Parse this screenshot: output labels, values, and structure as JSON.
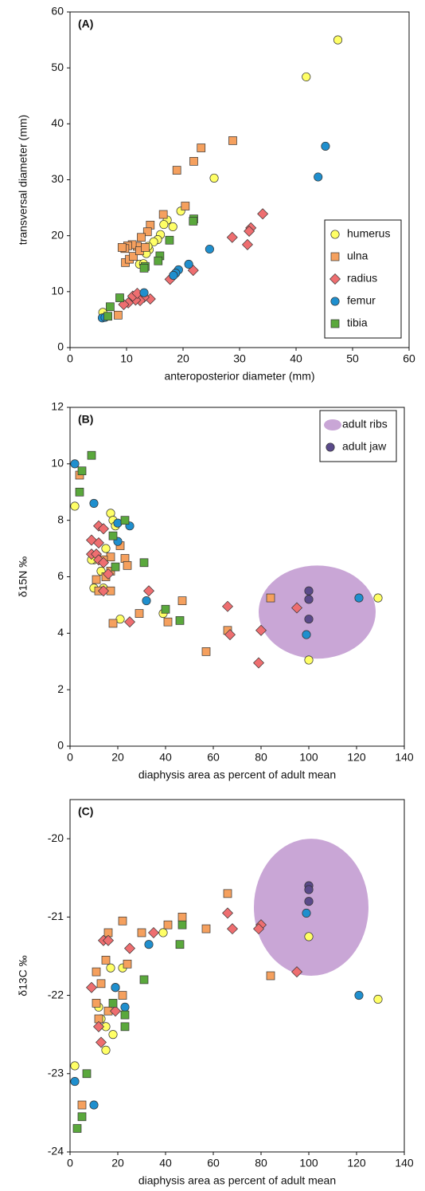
{
  "chart_data": [
    {
      "type": "scatter",
      "label": "(A)",
      "xlabel": "anteroposterior diameter (mm)",
      "ylabel": "transversal diameter (mm)",
      "xlim": [
        0,
        60
      ],
      "ylim": [
        0,
        60
      ],
      "xticks": [
        0,
        10,
        20,
        30,
        40,
        50,
        60
      ],
      "yticks": [
        0,
        10,
        20,
        30,
        40,
        50,
        60
      ],
      "legend": "lower right",
      "series": [
        {
          "name": "humerus",
          "color": "#ffff66",
          "marker": "circle",
          "x": [
            47.4,
            41.8,
            25.5,
            19.6,
            18.2,
            17.2,
            16.6,
            16,
            15.5,
            14.8,
            14,
            13.5,
            13.8,
            12.3,
            5.8,
            13
          ],
          "values": [
            55,
            48.4,
            30.3,
            24.4,
            21.6,
            22.8,
            22,
            20.2,
            19.3,
            18.9,
            17.5,
            16.8,
            18.1,
            14.9,
            6.3,
            15
          ]
        },
        {
          "name": "ulna",
          "color": "#f5a05e",
          "marker": "square",
          "x": [
            28.8,
            23.2,
            21.9,
            18.9,
            20.4,
            16.5,
            14.2,
            13.7,
            12.6,
            11.9,
            11,
            10.2,
            9.7,
            9.8,
            10.5,
            11.2,
            12.3,
            13.3,
            9.2,
            8.5
          ],
          "values": [
            37,
            35.7,
            33.3,
            31.7,
            25.3,
            23.8,
            21.9,
            20.7,
            19.7,
            18.1,
            18.4,
            18.2,
            17.7,
            15.2,
            15.8,
            16.3,
            17.3,
            17.9,
            17.9,
            5.8
          ]
        },
        {
          "name": "radius",
          "color": "#ee6e70",
          "marker": "diamond",
          "x": [
            34.1,
            32,
            31.7,
            31.4,
            28.7,
            21.8,
            18.5,
            17.7,
            14.2,
            13.1,
            12.4,
            11.6,
            11.1,
            10.3,
            9.5,
            11.9
          ],
          "values": [
            23.9,
            21.4,
            20.8,
            18.4,
            19.7,
            13.8,
            13.2,
            12.2,
            8.7,
            9,
            8.4,
            8.5,
            9.2,
            8,
            7.7,
            9.7
          ]
        },
        {
          "name": "femur",
          "color": "#1f8fce",
          "marker": "circle",
          "x": [
            45.2,
            43.9,
            24.7,
            21,
            19.2,
            18.7,
            18.3,
            13.1,
            5.7,
            6.2
          ],
          "values": [
            36,
            30.5,
            17.6,
            14.9,
            13.9,
            13.3,
            12.9,
            9.8,
            5.3,
            5.4
          ]
        },
        {
          "name": "tibia",
          "color": "#5aa83c",
          "marker": "square",
          "x": [
            21.9,
            21.8,
            17.6,
            15.9,
            15.6,
            13.3,
            13.1,
            8.8,
            7.1,
            6.7
          ],
          "values": [
            23,
            22.6,
            19.2,
            16.4,
            15.5,
            14.5,
            14.2,
            8.9,
            7.3,
            5.6
          ]
        }
      ]
    },
    {
      "type": "scatter",
      "label": "(B)",
      "xlabel": "diaphysis area as percent of adult mean",
      "ylabel": "δ15N ‰",
      "xlim": [
        0,
        140
      ],
      "ylim": [
        0,
        12
      ],
      "xticks": [
        0,
        20,
        40,
        60,
        80,
        100,
        120,
        140
      ],
      "yticks": [
        0,
        2,
        4,
        6,
        8,
        10,
        12
      ],
      "legend": "upper right",
      "series": [
        {
          "name": "adult ribs",
          "color": "#c9a6d6",
          "marker": "ellipse",
          "x_range": [
            79,
            128
          ],
          "y_range": [
            3.1,
            6.4
          ]
        },
        {
          "color": "#ffff66",
          "marker": "circle",
          "x": [
            2,
            17,
            18,
            19,
            15,
            10,
            9,
            10,
            14,
            21,
            39,
            100,
            129,
            13
          ],
          "values": [
            8.5,
            8.25,
            8,
            7.8,
            7,
            6.6,
            6.6,
            5.6,
            5.6,
            4.5,
            4.7,
            3.05,
            5.25,
            6.2
          ]
        },
        {
          "color": "#f5a05e",
          "marker": "square",
          "x": [
            4,
            21,
            17,
            14,
            17,
            15,
            11,
            12,
            17,
            18,
            23,
            24,
            29,
            41,
            47,
            57,
            66,
            84
          ],
          "values": [
            9.6,
            7.1,
            6.7,
            6.6,
            6.2,
            6,
            5.9,
            5.5,
            5.5,
            4.35,
            6.65,
            6.4,
            4.7,
            4.4,
            5.15,
            3.35,
            4.1,
            5.25
          ]
        },
        {
          "color": "#ee6e70",
          "marker": "diamond",
          "x": [
            12,
            14,
            9,
            12,
            9,
            11,
            12,
            14,
            16,
            14,
            33,
            25,
            66,
            67,
            80,
            79,
            95
          ],
          "values": [
            7.8,
            7.7,
            7.3,
            7.2,
            6.8,
            6.8,
            6.6,
            6.5,
            6.1,
            5.5,
            5.5,
            4.4,
            4.95,
            3.95,
            4.1,
            2.95,
            4.9
          ]
        },
        {
          "color": "#1f8fce",
          "marker": "circle",
          "x": [
            2,
            10,
            20,
            25,
            20,
            32,
            99,
            121
          ],
          "values": [
            10,
            8.6,
            7.9,
            7.8,
            7.25,
            5.15,
            3.95,
            5.25
          ]
        },
        {
          "color": "#5aa83c",
          "marker": "square",
          "x": [
            9,
            5,
            4,
            23,
            18,
            19,
            31,
            40,
            46
          ],
          "values": [
            10.3,
            9.75,
            9,
            8,
            7.45,
            6.35,
            6.5,
            4.85,
            4.45
          ]
        },
        {
          "name": "adult jaw",
          "color": "#5a4a8a",
          "marker": "circle",
          "x": [
            100,
            100,
            100
          ],
          "values": [
            5.5,
            5.2,
            4.5
          ]
        }
      ]
    },
    {
      "type": "scatter",
      "label": "(C)",
      "xlabel": "diaphysis area as percent of adult mean",
      "ylabel": "δ13C ‰",
      "xlim": [
        0,
        140
      ],
      "ylim": [
        -24,
        -19.5
      ],
      "xticks": [
        0,
        20,
        40,
        60,
        80,
        100,
        120,
        140
      ],
      "yticks": [
        -24,
        -23,
        -22,
        -21,
        -20
      ],
      "series": [
        {
          "color": "#c9a6d6",
          "marker": "ellipse",
          "x_range": [
            77,
            125
          ],
          "y_range": [
            -21.75,
            -20
          ]
        },
        {
          "color": "#ffff66",
          "marker": "circle",
          "x": [
            2,
            17,
            19,
            22,
            39,
            13,
            15,
            12,
            18,
            15,
            100,
            129
          ],
          "values": [
            -22.9,
            -21.65,
            -21.9,
            -21.65,
            -21.2,
            -22.3,
            -22.4,
            -22.15,
            -22.5,
            -22.7,
            -21.25,
            -22.05
          ]
        },
        {
          "color": "#f5a05e",
          "marker": "square",
          "x": [
            5,
            16,
            15,
            11,
            13,
            11,
            16,
            22,
            24,
            22,
            30,
            41,
            47,
            57,
            66,
            84,
            12
          ],
          "values": [
            -23.4,
            -21.2,
            -21.55,
            -21.7,
            -21.85,
            -22.1,
            -22.2,
            -21.05,
            -21.6,
            -22,
            -21.2,
            -21.1,
            -21,
            -21.15,
            -20.7,
            -21.75,
            -22.3
          ]
        },
        {
          "color": "#ee6e70",
          "marker": "diamond",
          "x": [
            14,
            16,
            9,
            12,
            13,
            19,
            25,
            35,
            66,
            68,
            80,
            79,
            95
          ],
          "values": [
            -21.3,
            -21.3,
            -21.9,
            -22.4,
            -22.6,
            -22.2,
            -21.4,
            -21.2,
            -20.95,
            -21.15,
            -21.1,
            -21.15,
            -21.7
          ]
        },
        {
          "color": "#1f8fce",
          "marker": "circle",
          "x": [
            2,
            10,
            19,
            23,
            33,
            99,
            121
          ],
          "values": [
            -23.1,
            -23.4,
            -21.9,
            -22.15,
            -21.35,
            -20.95,
            -22
          ]
        },
        {
          "color": "#5aa83c",
          "marker": "square",
          "x": [
            3,
            5,
            7,
            18,
            23,
            23,
            31,
            46,
            47
          ],
          "values": [
            -23.7,
            -23.55,
            -23,
            -22.1,
            -22.25,
            -22.4,
            -21.8,
            -21.35,
            -21.1
          ]
        },
        {
          "color": "#5a4a8a",
          "marker": "circle",
          "x": [
            100,
            100,
            100
          ],
          "values": [
            -20.6,
            -20.65,
            -20.8
          ]
        }
      ]
    }
  ]
}
